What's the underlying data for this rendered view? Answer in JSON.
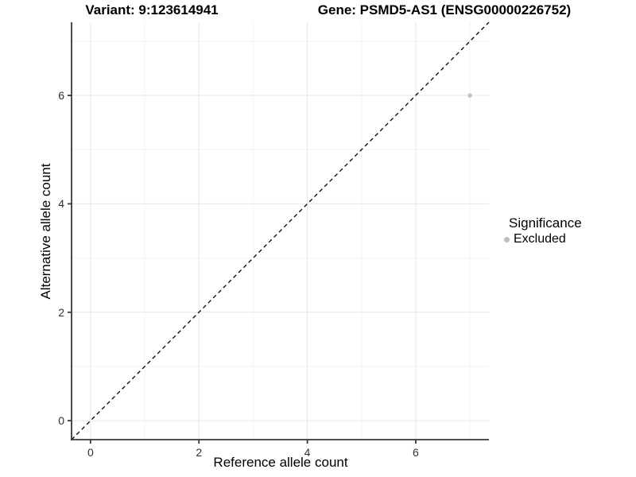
{
  "titles": {
    "variant": "Variant: 9:123614941",
    "gene": "Gene: PSMD5-AS1 (ENSG00000226752)"
  },
  "chart_data": {
    "type": "scatter",
    "title_left": "Variant: 9:123614941",
    "title_right": "Gene: PSMD5-AS1 (ENSG00000226752)",
    "xlabel": "Reference allele count",
    "ylabel": "Alternative allele count",
    "xlim": [
      -0.35,
      7.35
    ],
    "ylim": [
      -0.35,
      7.35
    ],
    "x_ticks": [
      0,
      2,
      4,
      6
    ],
    "y_ticks": [
      0,
      2,
      4,
      6
    ],
    "x_minor_ticks": [
      1,
      3,
      5,
      7
    ],
    "y_minor_ticks": [
      1,
      3,
      5,
      7
    ],
    "grid": true,
    "points": [
      {
        "x": 7,
        "y": 6,
        "series": "Excluded"
      }
    ],
    "reference_line": {
      "type": "identity",
      "style": "dashed",
      "color": "#000000"
    },
    "legend": {
      "title": "Significance",
      "position": "right",
      "items": [
        {
          "label": "Excluded",
          "color": "#bdbdbd"
        }
      ]
    },
    "colors": {
      "point": "#c0c0c0",
      "grid_major": "#e6e6e6",
      "grid_minor": "#f2f2f2",
      "axis_line": "#383838",
      "tick_label": "#303030"
    }
  }
}
